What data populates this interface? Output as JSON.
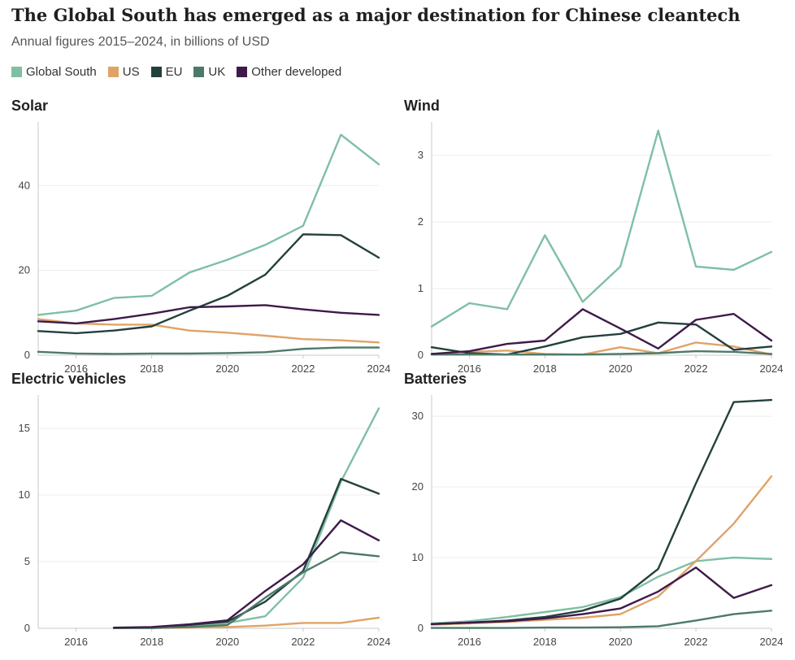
{
  "header": {
    "title": "The Global South has emerged as a major destination for Chinese cleantech",
    "subtitle": "Annual figures 2015–2024, in billions of USD"
  },
  "legend": [
    {
      "label": "Global South",
      "color": "#7fbfa4"
    },
    {
      "label": "US",
      "color": "#e0a366"
    },
    {
      "label": "EU",
      "color": "#24403d"
    },
    {
      "label": "UK",
      "color": "#4d7a68"
    },
    {
      "label": "Other developed",
      "color": "#3e1a4a"
    }
  ],
  "chart_data": [
    {
      "type": "line",
      "title": "Solar",
      "x": [
        2015,
        2016,
        2017,
        2018,
        2019,
        2020,
        2021,
        2022,
        2023,
        2024
      ],
      "xticks": [
        "2016",
        "2018",
        "2020",
        "2022",
        "2024"
      ],
      "yticks": [
        "0",
        "20",
        "40"
      ],
      "ylim": [
        0,
        55
      ],
      "series": [
        {
          "name": "Global South",
          "values": [
            9.5,
            10.5,
            13.5,
            14,
            19.5,
            22.5,
            26,
            30.5,
            52,
            45
          ]
        },
        {
          "name": "US",
          "values": [
            8.5,
            7.5,
            7.2,
            7.2,
            5.8,
            5.3,
            4.6,
            3.8,
            3.5,
            3.0
          ]
        },
        {
          "name": "EU",
          "values": [
            5.7,
            5.2,
            5.8,
            6.8,
            10.5,
            14,
            19,
            28.5,
            28.3,
            23
          ]
        },
        {
          "name": "UK",
          "values": [
            0.8,
            0.4,
            0.3,
            0.4,
            0.4,
            0.5,
            0.7,
            1.5,
            1.8,
            1.8
          ]
        },
        {
          "name": "Other developed",
          "values": [
            8,
            7.5,
            8.5,
            9.8,
            11.3,
            11.5,
            11.8,
            10.8,
            10,
            9.5
          ]
        }
      ]
    },
    {
      "type": "line",
      "title": "Wind",
      "x": [
        2015,
        2016,
        2017,
        2018,
        2019,
        2020,
        2021,
        2022,
        2023,
        2024
      ],
      "xticks": [
        "2016",
        "2018",
        "2020",
        "2022",
        "2024"
      ],
      "yticks": [
        "0",
        "1",
        "2",
        "3"
      ],
      "ylim": [
        0,
        3.5
      ],
      "series": [
        {
          "name": "Global South",
          "values": [
            0.43,
            0.78,
            0.69,
            1.8,
            0.8,
            1.33,
            3.37,
            1.33,
            1.28,
            1.55
          ]
        },
        {
          "name": "US",
          "values": [
            0.02,
            0.05,
            0.07,
            0.02,
            0.01,
            0.12,
            0.03,
            0.19,
            0.13,
            0.01
          ]
        },
        {
          "name": "EU",
          "values": [
            0.12,
            0.03,
            0.01,
            0.13,
            0.27,
            0.32,
            0.49,
            0.46,
            0.08,
            0.13
          ]
        },
        {
          "name": "UK",
          "values": [
            0.01,
            0.01,
            0.01,
            0.01,
            0.01,
            0.02,
            0.03,
            0.06,
            0.05,
            0.02
          ]
        },
        {
          "name": "Other developed",
          "values": [
            0.02,
            0.06,
            0.17,
            0.22,
            0.69,
            0.4,
            0.1,
            0.53,
            0.62,
            0.22
          ]
        }
      ]
    },
    {
      "type": "line",
      "title": "Electric vehicles",
      "x": [
        2017,
        2018,
        2019,
        2020,
        2021,
        2022,
        2023,
        2024
      ],
      "xticks": [
        "2016",
        "2018",
        "2020",
        "2022",
        "2024"
      ],
      "yticks": [
        "0",
        "5",
        "10",
        "15"
      ],
      "ylim": [
        0,
        17.5
      ],
      "series": [
        {
          "name": "Global South",
          "values": [
            0.02,
            0.05,
            0.1,
            0.4,
            0.9,
            3.8,
            11,
            16.5
          ]
        },
        {
          "name": "US",
          "values": [
            0.02,
            0.03,
            0.05,
            0.1,
            0.2,
            0.4,
            0.4,
            0.8
          ]
        },
        {
          "name": "EU",
          "values": [
            0.03,
            0.05,
            0.25,
            0.5,
            2,
            4.3,
            11.2,
            10.1
          ]
        },
        {
          "name": "UK",
          "values": [
            0.02,
            0.02,
            0.1,
            0.25,
            2.3,
            4.2,
            5.7,
            5.4
          ]
        },
        {
          "name": "Other developed",
          "values": [
            0.05,
            0.1,
            0.3,
            0.6,
            2.8,
            4.8,
            8.1,
            6.6
          ]
        }
      ]
    },
    {
      "type": "line",
      "title": "Batteries",
      "x": [
        2015,
        2016,
        2017,
        2018,
        2019,
        2020,
        2021,
        2022,
        2023,
        2024
      ],
      "xticks": [
        "2016",
        "2018",
        "2020",
        "2022",
        "2024"
      ],
      "yticks": [
        "0",
        "10",
        "20",
        "30"
      ],
      "ylim": [
        0,
        33
      ],
      "series": [
        {
          "name": "Global South",
          "values": [
            0.7,
            1.0,
            1.6,
            2.3,
            3.0,
            4.4,
            7.3,
            9.5,
            10.0,
            9.8
          ]
        },
        {
          "name": "US",
          "values": [
            0.5,
            0.7,
            0.9,
            1.2,
            1.5,
            2.0,
            4.5,
            9.5,
            14.8,
            21.5
          ]
        },
        {
          "name": "EU",
          "values": [
            0.6,
            0.8,
            1.1,
            1.6,
            2.5,
            4.2,
            8.4,
            20.5,
            32,
            32.3
          ]
        },
        {
          "name": "UK",
          "values": [
            0.05,
            0.05,
            0.05,
            0.1,
            0.1,
            0.15,
            0.3,
            1.1,
            2.0,
            2.5
          ]
        },
        {
          "name": "Other developed",
          "values": [
            0.6,
            0.8,
            1.0,
            1.4,
            2.0,
            2.8,
            5.2,
            8.6,
            4.3,
            6.1
          ]
        }
      ]
    }
  ]
}
